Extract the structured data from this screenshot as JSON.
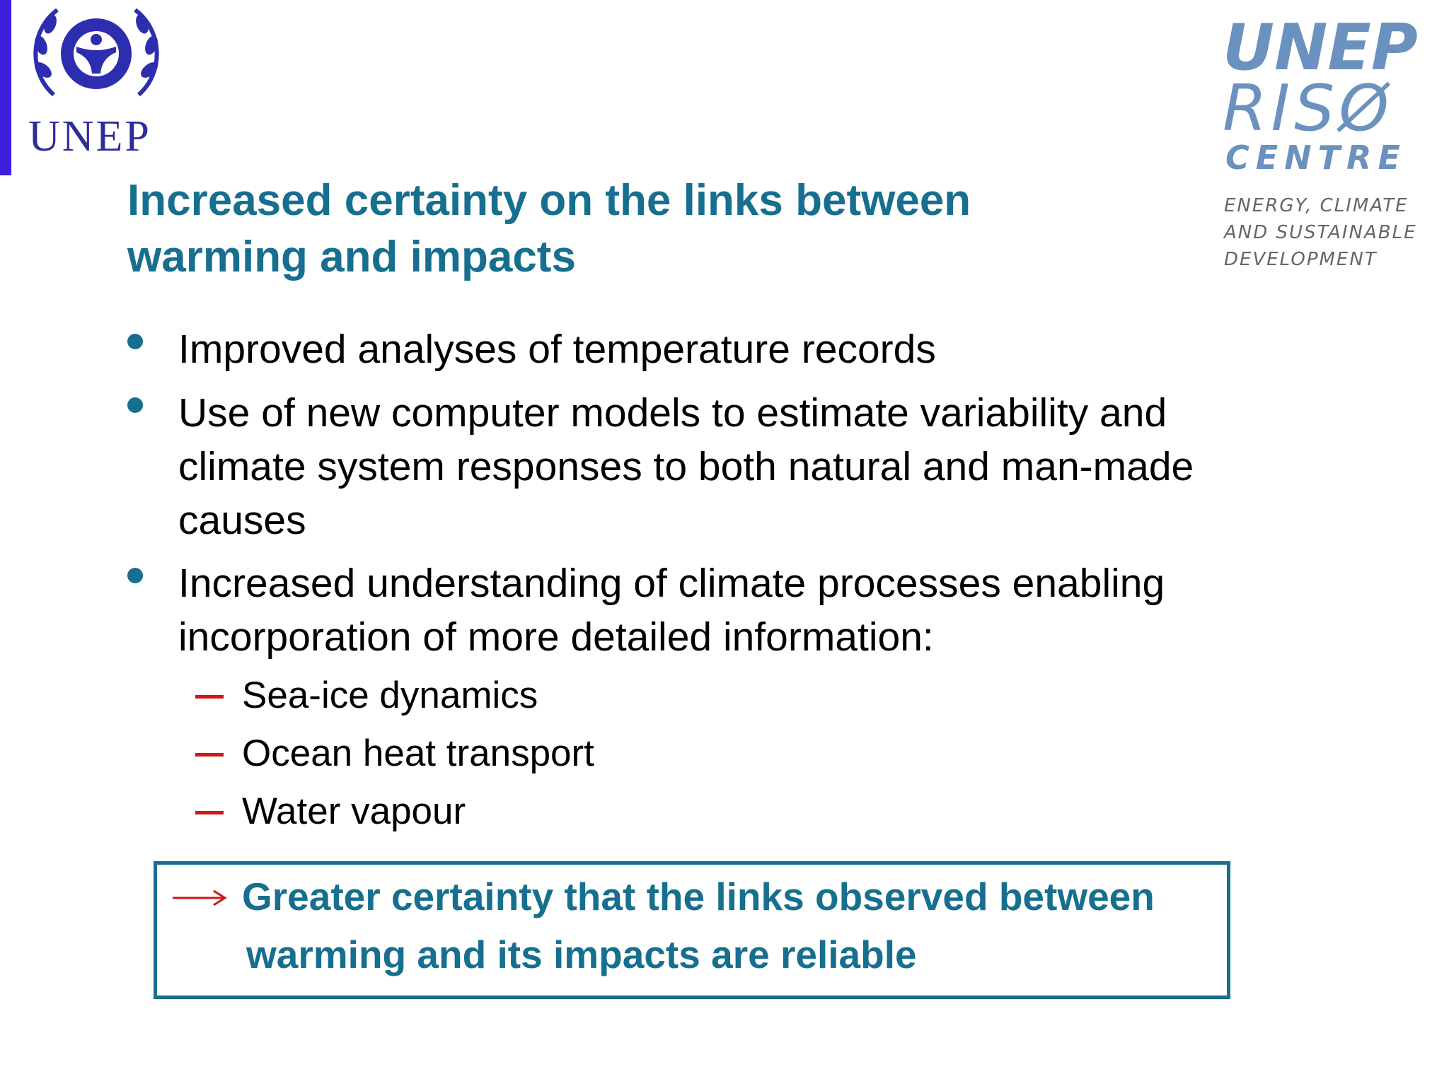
{
  "logos": {
    "left": {
      "text": "UNEP"
    },
    "right": {
      "lines": [
        "UNEP",
        "RISØ",
        "CENTRE"
      ],
      "tagline": [
        "ENERGY, CLIMATE",
        "AND SUSTAINABLE",
        "DEVELOPMENT"
      ]
    }
  },
  "title": "Increased certainty on the links between warming and impacts",
  "bullets": [
    {
      "text": "Improved analyses of temperature records"
    },
    {
      "text": "Use of new computer models to estimate variability and climate system responses to both natural and man-made causes"
    },
    {
      "text": "Increased understanding of climate processes enabling incorporation of more detailed information:",
      "subitems": [
        "Sea-ice dynamics",
        "Ocean heat transport",
        "Water vapour"
      ]
    }
  ],
  "conclusion": [
    "Greater certainty that the links observed between",
    "warming and its impacts are reliable"
  ]
}
